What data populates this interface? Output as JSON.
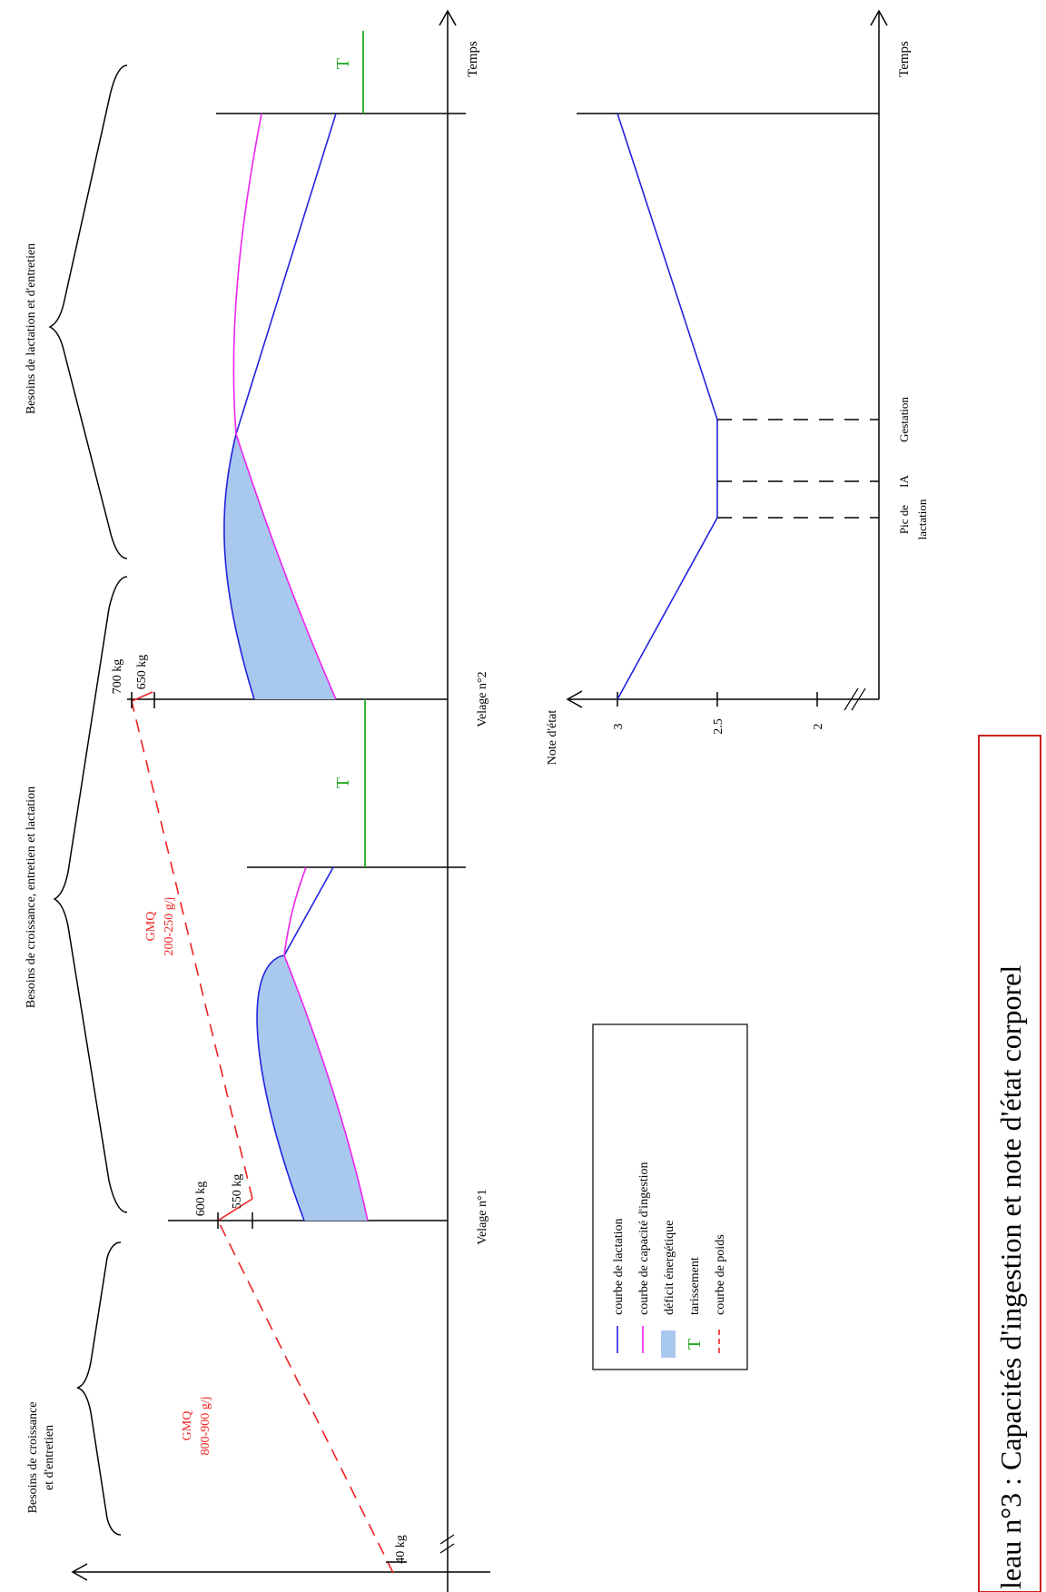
{
  "title": "leau n°3 : Capacités d'ingestion et note d'état corporel",
  "phases": {
    "growth": [
      "Besoins de croissance",
      "et d'entretien"
    ],
    "growth_lactation": "Besoins de croissance, entretien et lactation",
    "lactation": "Besoins de lactation et d'entretien"
  },
  "events": {
    "calving1": "Velage n°1",
    "calving2": "Velage n°2"
  },
  "axis": {
    "time": "Temps",
    "bcs": "Note d'état",
    "bcs_ticks": [
      "3",
      "2.5",
      "2"
    ],
    "bcs_markers": {
      "peak": [
        "Pic de",
        "lactation"
      ],
      "ai": "IA",
      "gestation": "Gestation"
    }
  },
  "weights": {
    "w40": "40 kg",
    "w550": "550 kg",
    "w600": "600 kg",
    "w650": "650 kg",
    "w700": "700 kg"
  },
  "gmq": {
    "first": [
      "GMQ",
      "800-900 g/j"
    ],
    "second": [
      "GMQ",
      "200-250 g/j"
    ]
  },
  "dry_marker": "T",
  "legend": [
    {
      "label": "courbe de lactation",
      "symbol": "line",
      "color": "#2222dd"
    },
    {
      "label": "courbe de capacité d'ingestion",
      "symbol": "line",
      "color": "#ee22ee"
    },
    {
      "label": "déficit énergétique",
      "symbol": "box",
      "color": "#a8c8ee"
    },
    {
      "label": "tarissement",
      "symbol": "T",
      "color": "#22aa22"
    },
    {
      "label": "courbe de poids",
      "symbol": "dash",
      "color": "#ee2222"
    }
  ],
  "colors": {
    "lactation": "#2222dd",
    "ingestion": "#ee22ee",
    "deficit": "#a8c8ee",
    "dry": "#22aa22",
    "weight": "#ee2222",
    "title_border": "#cc2222"
  }
}
